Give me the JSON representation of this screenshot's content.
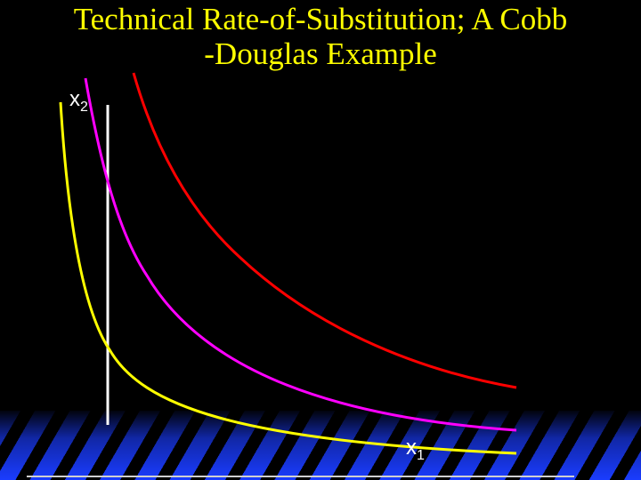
{
  "slide": {
    "title_line1": "Technical Rate-of-Substitution; A Cobb",
    "title_line2": "-Douglas Example",
    "colors": {
      "background": "#000000",
      "title": "#ffff00",
      "axis": "#ffffff",
      "stripe": "#1a3cff"
    }
  },
  "axes": {
    "y_label": "x",
    "y_sub": "2",
    "x_label": "x",
    "x_sub": "1"
  },
  "isoquants": [
    {
      "color": "#ffff00",
      "level": "low"
    },
    {
      "color": "#ff00ff",
      "level": "middle"
    },
    {
      "color": "#ff0000",
      "level": "high"
    }
  ]
}
